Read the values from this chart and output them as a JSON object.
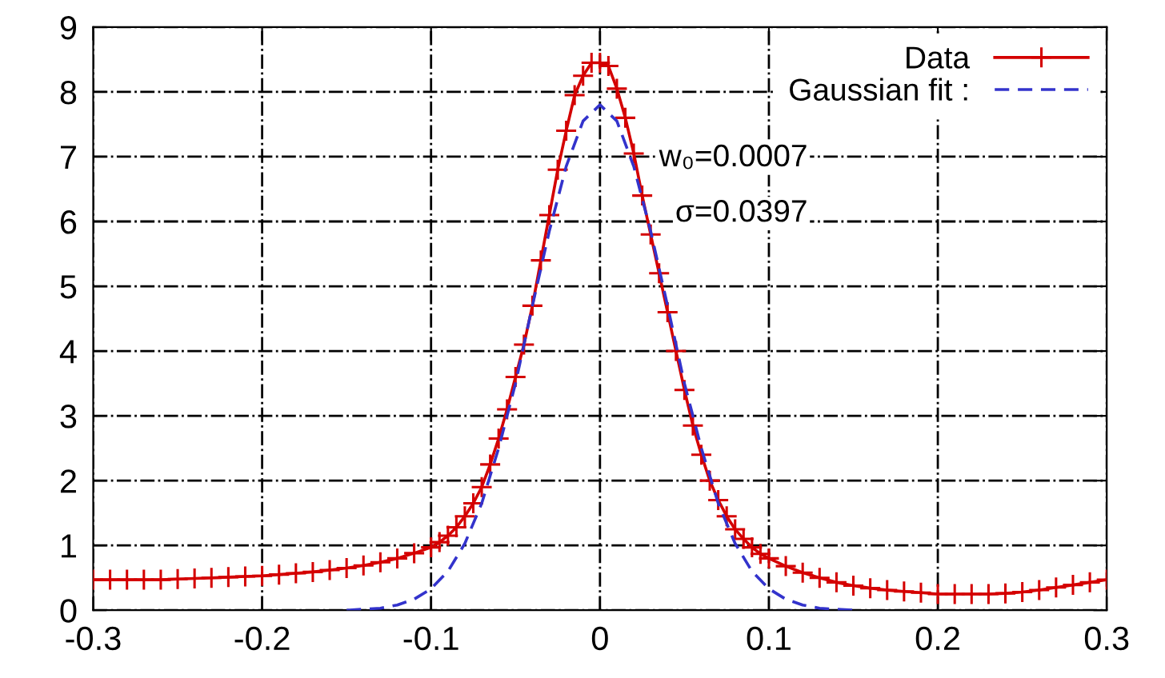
{
  "chart_data": {
    "type": "line",
    "xlim": [
      -0.3,
      0.3
    ],
    "xticks": [
      -0.3,
      -0.2,
      -0.1,
      0,
      0.1,
      0.2,
      0.3
    ],
    "ylim": [
      0,
      9
    ],
    "yticks": [
      0,
      1,
      2,
      3,
      4,
      5,
      6,
      7,
      8,
      9
    ],
    "grid": true,
    "legend": "top right",
    "series": [
      {
        "name": "Data",
        "color": "#d40000",
        "marker": "cross",
        "line_style": "solid",
        "x": [
          -0.3,
          -0.29,
          -0.28,
          -0.27,
          -0.26,
          -0.25,
          -0.24,
          -0.23,
          -0.22,
          -0.21,
          -0.2,
          -0.19,
          -0.18,
          -0.17,
          -0.16,
          -0.15,
          -0.14,
          -0.13,
          -0.12,
          -0.11,
          -0.1,
          -0.095,
          -0.09,
          -0.085,
          -0.08,
          -0.075,
          -0.07,
          -0.065,
          -0.06,
          -0.055,
          -0.05,
          -0.045,
          -0.04,
          -0.035,
          -0.03,
          -0.025,
          -0.02,
          -0.015,
          -0.01,
          -0.005,
          0,
          0.005,
          0.01,
          0.015,
          0.02,
          0.025,
          0.03,
          0.035,
          0.04,
          0.045,
          0.05,
          0.055,
          0.06,
          0.065,
          0.07,
          0.075,
          0.08,
          0.085,
          0.09,
          0.095,
          0.1,
          0.11,
          0.12,
          0.13,
          0.14,
          0.15,
          0.16,
          0.17,
          0.18,
          0.19,
          0.2,
          0.21,
          0.22,
          0.23,
          0.24,
          0.25,
          0.26,
          0.27,
          0.28,
          0.29,
          0.3
        ],
        "values": [
          0.47,
          0.47,
          0.47,
          0.47,
          0.47,
          0.48,
          0.49,
          0.5,
          0.51,
          0.52,
          0.53,
          0.55,
          0.57,
          0.59,
          0.62,
          0.65,
          0.69,
          0.74,
          0.8,
          0.88,
          0.97,
          1.05,
          1.15,
          1.28,
          1.45,
          1.65,
          1.9,
          2.25,
          2.65,
          3.1,
          3.6,
          4.1,
          4.7,
          5.4,
          6.1,
          6.8,
          7.4,
          7.95,
          8.25,
          8.45,
          8.45,
          8.4,
          8.05,
          7.6,
          7.05,
          6.4,
          5.8,
          5.2,
          4.6,
          4.0,
          3.4,
          2.85,
          2.4,
          2.0,
          1.7,
          1.45,
          1.25,
          1.1,
          0.97,
          0.87,
          0.8,
          0.68,
          0.58,
          0.5,
          0.43,
          0.38,
          0.34,
          0.31,
          0.29,
          0.27,
          0.25,
          0.25,
          0.25,
          0.25,
          0.26,
          0.28,
          0.31,
          0.35,
          0.39,
          0.43,
          0.47
        ]
      },
      {
        "name": "Gaussian fit :",
        "color": "#3333cc",
        "marker": "none",
        "line_style": "dashed",
        "x": [
          -0.15,
          -0.13,
          -0.12,
          -0.11,
          -0.1,
          -0.09,
          -0.08,
          -0.07,
          -0.06,
          -0.05,
          -0.04,
          -0.03,
          -0.02,
          -0.01,
          0,
          0.01,
          0.02,
          0.03,
          0.04,
          0.05,
          0.06,
          0.07,
          0.08,
          0.09,
          0.1,
          0.11,
          0.12,
          0.13,
          0.15
        ],
        "values": [
          0.0,
          0.03,
          0.08,
          0.17,
          0.33,
          0.6,
          1.03,
          1.65,
          2.5,
          3.5,
          4.7,
          5.85,
          6.85,
          7.55,
          7.8,
          7.55,
          6.85,
          5.85,
          4.7,
          3.5,
          2.5,
          1.65,
          1.03,
          0.6,
          0.33,
          0.17,
          0.08,
          0.03,
          0.0
        ]
      }
    ],
    "annotations": [
      "w₀=0.0007",
      "σ=0.0397"
    ]
  }
}
